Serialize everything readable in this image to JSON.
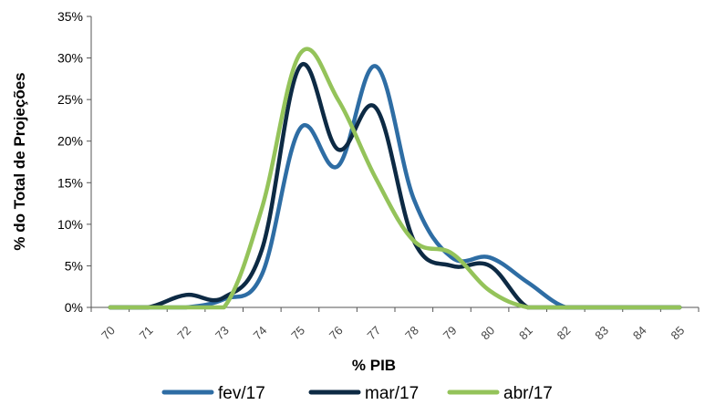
{
  "chart_data": {
    "type": "line",
    "xlabel": "% PIB",
    "ylabel": "% do Total de Projeções",
    "x_ticks": [
      70,
      71,
      72,
      73,
      74,
      75,
      76,
      77,
      78,
      79,
      80,
      81,
      82,
      83,
      84,
      85
    ],
    "y_ticks": [
      "0%",
      "5%",
      "10%",
      "15%",
      "20%",
      "25%",
      "30%",
      "35%"
    ],
    "ylim": [
      0,
      35
    ],
    "xlim": [
      70,
      85
    ],
    "grid": false,
    "legend_position": "bottom",
    "series": [
      {
        "name": "fev/17",
        "color": "#2e6da4",
        "points": [
          [
            70,
            0
          ],
          [
            71,
            0
          ],
          [
            72,
            0
          ],
          [
            73,
            1
          ],
          [
            74,
            4
          ],
          [
            75,
            21.5
          ],
          [
            76,
            17
          ],
          [
            77,
            29
          ],
          [
            78,
            13
          ],
          [
            79,
            6
          ],
          [
            80,
            6
          ],
          [
            81,
            3
          ],
          [
            82,
            0
          ],
          [
            83,
            0
          ],
          [
            84,
            0
          ],
          [
            85,
            0
          ]
        ]
      },
      {
        "name": "mar/17",
        "color": "#0d2a44",
        "points": [
          [
            70,
            0
          ],
          [
            71,
            0
          ],
          [
            72,
            1.5
          ],
          [
            73,
            1.2
          ],
          [
            74,
            7
          ],
          [
            75,
            29
          ],
          [
            76,
            19
          ],
          [
            77,
            24
          ],
          [
            78,
            8
          ],
          [
            79,
            5
          ],
          [
            80,
            5
          ],
          [
            81,
            0
          ],
          [
            82,
            0
          ],
          [
            83,
            0
          ],
          [
            84,
            0
          ],
          [
            85,
            0
          ]
        ]
      },
      {
        "name": "abr/17",
        "color": "#94c35a",
        "points": [
          [
            70,
            0
          ],
          [
            71,
            0
          ],
          [
            72,
            0
          ],
          [
            73,
            0
          ],
          [
            74,
            12
          ],
          [
            75,
            30.5
          ],
          [
            76,
            25
          ],
          [
            77,
            15.5
          ],
          [
            78,
            8
          ],
          [
            79,
            6.5
          ],
          [
            80,
            2
          ],
          [
            81,
            0
          ],
          [
            82,
            0
          ],
          [
            83,
            0
          ],
          [
            84,
            0
          ],
          [
            85,
            0
          ]
        ]
      }
    ]
  }
}
